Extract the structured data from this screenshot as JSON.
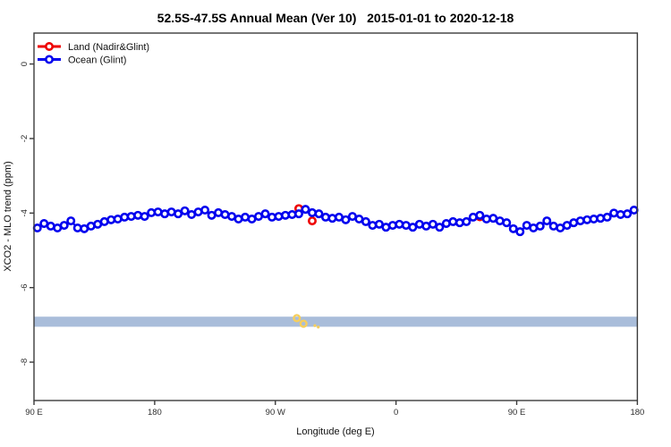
{
  "title": "52.5S-47.5S Annual Mean (Ver 10)   2015-01-01 to 2020-12-18",
  "legend": {
    "items": [
      {
        "label": "Land (Nadir&Glint)",
        "color": "#EE0000"
      },
      {
        "label": "Ocean (Glint)",
        "color": "#0000EE"
      }
    ]
  },
  "colors": {
    "land": "#EE0000",
    "ocean": "#0000EE",
    "band": "#A9BDDA",
    "flagged": "#F6CE5C",
    "frame": "#3B3B3B"
  },
  "chart_data": {
    "type": "line",
    "title": "52.5S-47.5S Annual Mean (Ver 10)   2015-01-01 to 2020-12-18",
    "xlabel": "Longitude (deg E)",
    "ylabel": "XCO2 - MLO trend (ppm)",
    "xlim": [
      90,
      540
    ],
    "ylim": [
      -9.03,
      0.83
    ],
    "grid": false,
    "legend_position": "top-left",
    "x_ticks": [
      {
        "lon": 90,
        "label": "90 E"
      },
      {
        "lon": 180,
        "label": "180"
      },
      {
        "lon": 270,
        "label": "90 W"
      },
      {
        "lon": 360,
        "label": "0"
      },
      {
        "lon": 450,
        "label": "90 E"
      },
      {
        "lon": 540,
        "label": "180"
      }
    ],
    "y_ticks": [
      {
        "value": 0,
        "label": "0"
      },
      {
        "value": -2,
        "label": "-2"
      },
      {
        "value": -4,
        "label": "-4"
      },
      {
        "value": -6,
        "label": "-6"
      },
      {
        "value": -8,
        "label": "-8"
      }
    ],
    "series": [
      {
        "name": "Land (Nadir&Glint)",
        "color": "#EE0000",
        "marker": "open-circle",
        "points": [
          [
            287.5,
            -3.88
          ],
          [
            297.5,
            -4.21
          ],
          [
            422.5,
            -4.1
          ]
        ]
      },
      {
        "name": "Ocean (Glint)",
        "color": "#0000EE",
        "marker": "open-circle",
        "x_start": 92.5,
        "x_step": 5,
        "values": [
          -4.4,
          -4.28,
          -4.35,
          -4.4,
          -4.33,
          -4.21,
          -4.4,
          -4.42,
          -4.35,
          -4.3,
          -4.23,
          -4.18,
          -4.16,
          -4.11,
          -4.09,
          -4.06,
          -4.09,
          -3.99,
          -3.97,
          -4.02,
          -3.97,
          -4.02,
          -3.94,
          -4.04,
          -3.97,
          -3.92,
          -4.06,
          -3.99,
          -4.04,
          -4.09,
          -4.16,
          -4.11,
          -4.16,
          -4.09,
          -4.02,
          -4.11,
          -4.09,
          -4.06,
          -4.04,
          -4.02,
          -3.9,
          -3.99,
          -4.02,
          -4.11,
          -4.14,
          -4.11,
          -4.18,
          -4.09,
          -4.16,
          -4.23,
          -4.33,
          -4.3,
          -4.38,
          -4.33,
          -4.3,
          -4.33,
          -4.38,
          -4.3,
          -4.35,
          -4.3,
          -4.38,
          -4.28,
          -4.23,
          -4.26,
          -4.23,
          -4.11,
          -4.06,
          -4.16,
          -4.14,
          -4.21,
          -4.26,
          -4.42,
          -4.5,
          -4.33,
          -4.4,
          -4.35,
          -4.21,
          -4.35,
          -4.4,
          -4.33,
          -4.26,
          -4.21,
          -4.18,
          -4.16,
          -4.14,
          -4.11,
          -4.0,
          -4.04,
          -4.02,
          -3.92
        ]
      }
    ],
    "band": {
      "x_range": [
        90,
        540
      ],
      "y_range": [
        -7.05,
        -6.78
      ],
      "color": "#A9BDDA"
    },
    "flagged_points": {
      "color": "#F6CE5C",
      "points": [
        {
          "x": 286,
          "y": -6.82,
          "style": "open"
        },
        {
          "x": 291,
          "y": -6.97,
          "style": "open"
        },
        {
          "x": 299.5,
          "y": -7.02,
          "style": "dot"
        },
        {
          "x": 302,
          "y": -7.06,
          "style": "dot"
        }
      ]
    }
  }
}
